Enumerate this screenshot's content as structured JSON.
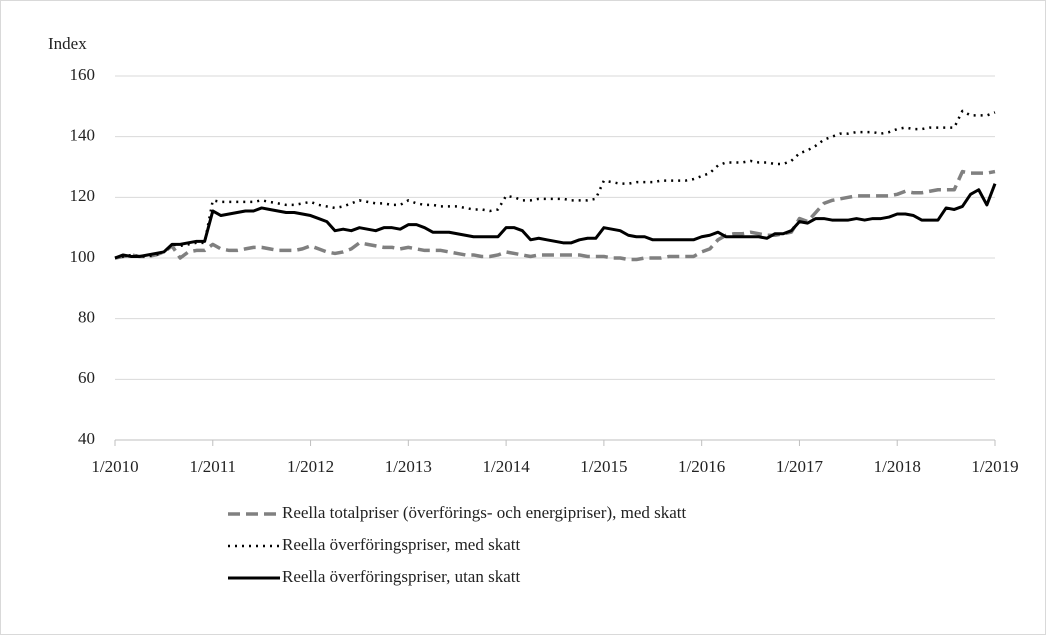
{
  "chart_data": {
    "type": "line",
    "y_label": "Index",
    "x": [
      "1/2010",
      "2/2010",
      "3/2010",
      "4/2010",
      "5/2010",
      "6/2010",
      "7/2010",
      "8/2010",
      "9/2010",
      "10/2010",
      "11/2010",
      "12/2010",
      "1/2011",
      "2/2011",
      "3/2011",
      "4/2011",
      "5/2011",
      "6/2011",
      "7/2011",
      "8/2011",
      "9/2011",
      "10/2011",
      "11/2011",
      "12/2011",
      "1/2012",
      "2/2012",
      "3/2012",
      "4/2012",
      "5/2012",
      "6/2012",
      "7/2012",
      "8/2012",
      "9/2012",
      "10/2012",
      "11/2012",
      "12/2012",
      "1/2013",
      "2/2013",
      "3/2013",
      "4/2013",
      "5/2013",
      "6/2013",
      "7/2013",
      "8/2013",
      "9/2013",
      "10/2013",
      "11/2013",
      "12/2013",
      "1/2014",
      "2/2014",
      "3/2014",
      "4/2014",
      "5/2014",
      "6/2014",
      "7/2014",
      "8/2014",
      "9/2014",
      "10/2014",
      "11/2014",
      "12/2014",
      "1/2015",
      "2/2015",
      "3/2015",
      "4/2015",
      "5/2015",
      "6/2015",
      "7/2015",
      "8/2015",
      "9/2015",
      "10/2015",
      "11/2015",
      "12/2015",
      "1/2016",
      "2/2016",
      "3/2016",
      "4/2016",
      "5/2016",
      "6/2016",
      "7/2016",
      "8/2016",
      "9/2016",
      "10/2016",
      "11/2016",
      "12/2016",
      "1/2017",
      "2/2017",
      "3/2017",
      "4/2017",
      "5/2017",
      "6/2017",
      "7/2017",
      "8/2017",
      "9/2017",
      "10/2017",
      "11/2017",
      "12/2017",
      "1/2018",
      "2/2018",
      "3/2018",
      "4/2018",
      "5/2018",
      "6/2018",
      "7/2018",
      "8/2018",
      "9/2018",
      "10/2018",
      "11/2018",
      "12/2018",
      "1/2019"
    ],
    "xticks": [
      "1/2010",
      "1/2011",
      "1/2012",
      "1/2013",
      "1/2014",
      "1/2015",
      "1/2016",
      "1/2017",
      "1/2018",
      "1/2019"
    ],
    "ylim": [
      40,
      160
    ],
    "yticks": [
      40,
      60,
      80,
      100,
      120,
      140,
      160
    ],
    "series": [
      {
        "name": "Reella totalpriser (överförings- och energipriser), med skatt",
        "color": "#808080",
        "dash": "dashed",
        "values": [
          100,
          100.5,
          101,
          100.5,
          100.5,
          101,
          102,
          104,
          100,
          102,
          102.5,
          102.5,
          104.5,
          103,
          102.5,
          102.5,
          103,
          103.5,
          103.5,
          103,
          102.5,
          102.5,
          102.5,
          103,
          104,
          103,
          102,
          101.5,
          102,
          103,
          105,
          104.5,
          104,
          103.5,
          103.5,
          103,
          103.5,
          103,
          102.5,
          102.5,
          102.5,
          102,
          101.5,
          101,
          101,
          100.5,
          100.5,
          101,
          102,
          101.5,
          101,
          100.5,
          101,
          101,
          101,
          101,
          101,
          101,
          100.5,
          100.5,
          100.5,
          100,
          100,
          99.5,
          99.5,
          100,
          100,
          100,
          100.5,
          100.5,
          100.5,
          100.5,
          102,
          103,
          106,
          107.5,
          108,
          108,
          108.5,
          108,
          107.5,
          107.5,
          108,
          108.5,
          113,
          112,
          115,
          118,
          119,
          119.5,
          120,
          120.5,
          120.5,
          120.5,
          120.5,
          120.5,
          121,
          122,
          121.5,
          121.5,
          122,
          122.5,
          122.5,
          122.5,
          128.5,
          128,
          128,
          128,
          128.5
        ]
      },
      {
        "name": "Reella överföringspriser, med skatt",
        "color": "#000000",
        "dash": "dotted",
        "values": [
          100,
          100.5,
          101,
          100.5,
          100.5,
          101,
          102,
          104.5,
          104,
          104.5,
          105,
          105,
          119,
          118.5,
          118.5,
          118.5,
          118.5,
          118.5,
          119,
          118.5,
          118,
          117.5,
          117.5,
          118,
          118.5,
          117.5,
          117,
          116.5,
          117,
          118,
          119,
          118.5,
          118,
          118,
          117.5,
          117.5,
          119,
          118,
          117.5,
          117.5,
          117,
          117,
          117,
          116.5,
          116,
          116,
          115.5,
          116,
          120.5,
          120,
          119,
          119,
          119.5,
          119.5,
          119.5,
          119.5,
          119,
          119,
          119,
          119.5,
          125.5,
          125,
          124.5,
          124.5,
          125,
          125,
          125,
          125.5,
          125.5,
          125.5,
          125.5,
          126,
          127,
          128,
          130.5,
          131.5,
          131.5,
          131.5,
          132,
          131.5,
          131.5,
          131,
          131,
          132,
          134.5,
          135.5,
          137,
          139,
          140,
          141,
          141,
          141.5,
          141.5,
          141.5,
          141,
          141.5,
          142.5,
          143,
          142.5,
          142.5,
          143,
          143,
          143,
          143,
          148.5,
          147,
          147,
          147,
          148
        ]
      },
      {
        "name": "Reella överföringspriser, utan skatt",
        "color": "#000000",
        "dash": "solid",
        "values": [
          100,
          101,
          100.5,
          100.5,
          101,
          101.5,
          102,
          104.5,
          104.5,
          105,
          105.5,
          105.5,
          115.5,
          114,
          114.5,
          115,
          115.5,
          115.5,
          116.5,
          116,
          115.5,
          115,
          115,
          114.5,
          114,
          113,
          112,
          109,
          109.5,
          109,
          110,
          109.5,
          109,
          110,
          110,
          109.5,
          111,
          111,
          110,
          108.5,
          108.5,
          108.5,
          108,
          107.5,
          107,
          107,
          107,
          107,
          110,
          110,
          109,
          106,
          106.5,
          106,
          105.5,
          105,
          105,
          106,
          106.5,
          106.5,
          110,
          109.5,
          109,
          107.5,
          107,
          107,
          106,
          106,
          106,
          106,
          106,
          106,
          107,
          107.5,
          108.5,
          107,
          107,
          107,
          107,
          107,
          106.5,
          108,
          108,
          109,
          112,
          111.5,
          113,
          113,
          112.5,
          112.5,
          112.5,
          113,
          112.5,
          113,
          113,
          113.5,
          114.5,
          114.5,
          114,
          112.5,
          112.5,
          112.5,
          116.5,
          116,
          117,
          121,
          122.5,
          117.5,
          124.5
        ]
      }
    ]
  }
}
